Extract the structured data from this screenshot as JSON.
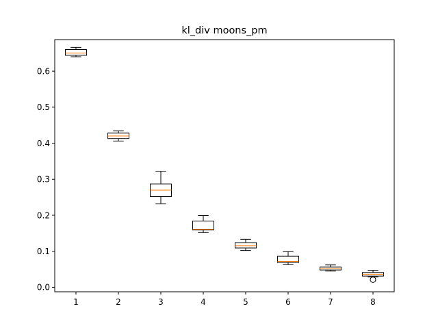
{
  "chart_data": {
    "type": "boxplot",
    "title": "kl_div moons_pm",
    "xlabel": "",
    "ylabel": "",
    "categories": [
      "1",
      "2",
      "3",
      "4",
      "5",
      "6",
      "7",
      "8"
    ],
    "ylim": [
      -0.0125,
      0.6875
    ],
    "yticks": [
      0.0,
      0.1,
      0.2,
      0.3,
      0.4,
      0.5,
      0.6
    ],
    "ytick_labels": [
      "0.0",
      "0.1",
      "0.2",
      "0.3",
      "0.4",
      "0.5",
      "0.6"
    ],
    "grid": false,
    "boxes": [
      {
        "whisker_low": 0.64,
        "q1": 0.644,
        "median": 0.65,
        "q3": 0.66,
        "whisker_high": 0.666,
        "outliers": []
      },
      {
        "whisker_low": 0.406,
        "q1": 0.413,
        "median": 0.42,
        "q3": 0.428,
        "whisker_high": 0.434,
        "outliers": []
      },
      {
        "whisker_low": 0.232,
        "q1": 0.252,
        "median": 0.27,
        "q3": 0.287,
        "whisker_high": 0.322,
        "outliers": []
      },
      {
        "whisker_low": 0.152,
        "q1": 0.159,
        "median": 0.161,
        "q3": 0.184,
        "whisker_high": 0.199,
        "outliers": []
      },
      {
        "whisker_low": 0.102,
        "q1": 0.109,
        "median": 0.115,
        "q3": 0.124,
        "whisker_high": 0.133,
        "outliers": []
      },
      {
        "whisker_low": 0.063,
        "q1": 0.069,
        "median": 0.072,
        "q3": 0.086,
        "whisker_high": 0.099,
        "outliers": []
      },
      {
        "whisker_low": 0.045,
        "q1": 0.048,
        "median": 0.052,
        "q3": 0.056,
        "whisker_high": 0.062,
        "outliers": []
      },
      {
        "whisker_low": 0.029,
        "q1": 0.031,
        "median": 0.036,
        "q3": 0.041,
        "whisker_high": 0.047,
        "outliers": [
          0.021
        ]
      }
    ],
    "colors": {
      "box": "#000000",
      "median": "#ff7f0e",
      "axes": "#000000",
      "background": "#ffffff"
    }
  }
}
